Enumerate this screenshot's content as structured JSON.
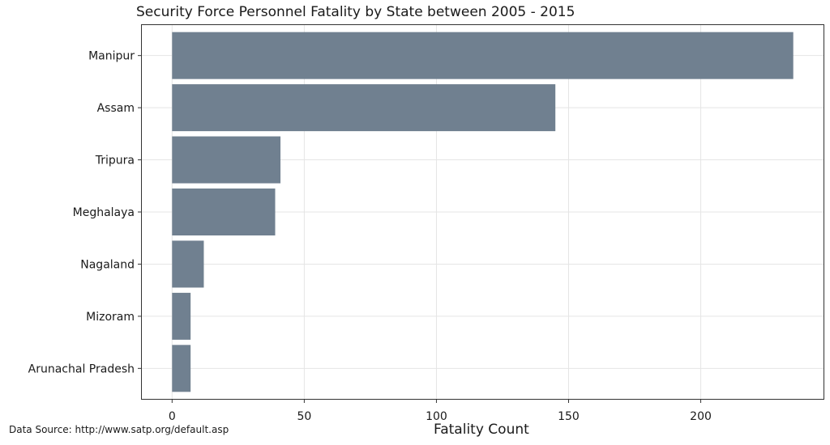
{
  "chart_data": {
    "type": "bar",
    "orientation": "horizontal",
    "title": "Security Force Personnel Fatality by State between 2005 - 2015",
    "xlabel": "Fatality Count",
    "ylabel": "",
    "categories": [
      "Manipur",
      "Assam",
      "Tripura",
      "Meghalaya",
      "Nagaland",
      "Mizoram",
      "Arunachal Pradesh"
    ],
    "values": [
      235,
      145,
      41,
      39,
      12,
      7,
      7
    ],
    "xlim": [
      -11.75,
      246.75
    ],
    "xticks": [
      0,
      50,
      100,
      150,
      200
    ],
    "xtick_labels": [
      "0",
      "50",
      "100",
      "150",
      "200"
    ],
    "bar_color": "#708090",
    "grid": true,
    "grid_color": "#e5e5e5",
    "panel_border_color": "#333333",
    "legend": "none",
    "caption": "Data Source: http://www.satp.org/default.asp"
  }
}
